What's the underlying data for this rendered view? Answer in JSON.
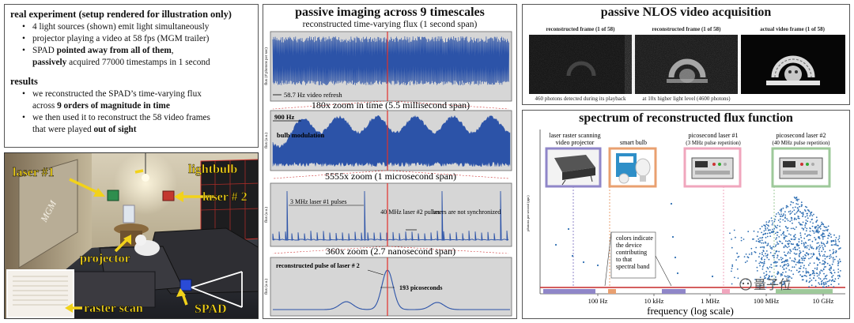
{
  "experiment": {
    "heading": "real experiment (setup rendered for illustration only)",
    "items": [
      "4 light sources (shown) emit light simultaneously",
      "projector playing a video at 58 fps (MGM trailer)"
    ],
    "spad_line": {
      "pre": "SPAD ",
      "bold": "pointed away from all of them",
      "post": ",",
      "bold2": "passively",
      "post2": " acquired 77000 timestamps in 1 second"
    }
  },
  "results": {
    "heading": "results",
    "line1": "we reconstructed the SPAD’s time-varying flux",
    "line1b_pre": "across ",
    "line1b_bold": "9 orders of magnitude in time",
    "line2": "we then used it to reconstruct the 58 video frames",
    "line2b_pre": "that were played ",
    "line2b_bold": "out of sight"
  },
  "scene": {
    "labels": {
      "laser1": "laser #1",
      "lightbulb": "lightbulb",
      "laser2": "laser # 2",
      "projector": "projector",
      "raster": "raster scan",
      "spad": "SPAD"
    },
    "poster_text": "MGM"
  },
  "middle": {
    "title": "passive imaging across 9 timescales",
    "plot1": {
      "caption": "reconstructed time-varying flux (1 second span)",
      "ylabel": "flux (# photons per sec)",
      "annotation": "58.7 Hz video refresh"
    },
    "zoom1": "180x zoom in time (5.5 millisecond span)",
    "plot2": {
      "ylabel": "flux (a.u.)",
      "freq": "900 Hz",
      "label": "bulb modulation"
    },
    "zoom2": "5555x zoom (1 microsecond span)",
    "plot3": {
      "ylabel": "flux (a.u.)",
      "laser1": "3 MHz laser #1 pulses",
      "laser2": "40 MHz laser #2 pulses",
      "notsync": "lasers are not synchronized"
    },
    "zoom3": "360x zoom (2.7 nanosecond span)",
    "plot4": {
      "ylabel": "flux (a.u.)",
      "pulse": "reconstructed pulse of laser # 2",
      "width": "193 picoseconds"
    }
  },
  "nlos": {
    "title": "passive NLOS video acquisition",
    "frames": [
      {
        "label": "reconstructed frame (1 of 58)",
        "sub": "460 photons detected during its playback"
      },
      {
        "label": "reconstructed frame (1 of 58)",
        "sub": "at 10x higher light level (4600 photons)"
      },
      {
        "label": "actual video frame (1 of 58)",
        "sub": ""
      }
    ]
  },
  "spectrum": {
    "title": "spectrum of reconstructed flux function",
    "ylabel": "photons per second (ppc)",
    "xlabel": "frequency (log scale)",
    "ticks": [
      "100 Hz",
      "10 kHz",
      "1 MHz",
      "100 MHz",
      "10 GHz"
    ],
    "devices": [
      {
        "name": "laser raster scanning video projector",
        "l1": "laser raster scanning",
        "l2": "video projector",
        "color": "#8f86c8"
      },
      {
        "name": "smart bulb",
        "l1": "smart bulb",
        "l2": "",
        "color": "#e9a070"
      },
      {
        "name": "picosecond laser #1",
        "l1": "picosecond laser #1",
        "l2": "(3 MHz pulse repetition)",
        "color": "#f0a6bd"
      },
      {
        "name": "picosecond laser #2",
        "l1": "picosecond laser #2",
        "l2": "(40 MHz pulse repetition)",
        "color": "#9ec99a"
      }
    ],
    "note": [
      "colors indicate",
      "the device",
      "contributing",
      "to that",
      "spectral band"
    ],
    "watermark": "量子位"
  }
}
